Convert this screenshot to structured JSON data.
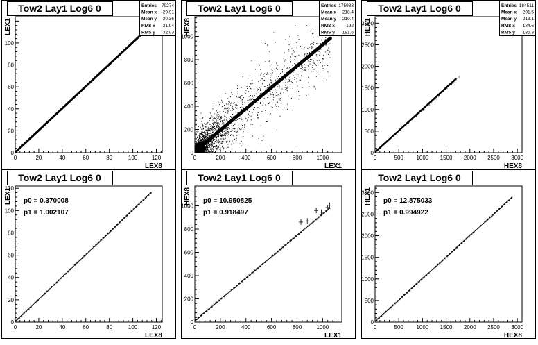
{
  "chart_data": [
    {
      "type": "scatter",
      "title": "Tow2 Lay1 Log6 0",
      "xlabel": "LEX8",
      "ylabel": "LEX1",
      "xlim": [
        0,
        125
      ],
      "ylim": [
        0,
        124
      ],
      "xticks": [
        0,
        20,
        40,
        60,
        80,
        100,
        120
      ],
      "yticks": [
        0,
        20,
        40,
        60,
        80,
        100
      ],
      "stats": [
        {
          "label": "Entries",
          "value": "79274"
        },
        {
          "label": "Mean x",
          "value": "29.91"
        },
        {
          "label": "Mean y",
          "value": "30.36"
        },
        {
          "label": "RMS x",
          "value": "31.94"
        },
        {
          "label": "RMS y",
          "value": "32.03"
        }
      ],
      "trend": {
        "slope": 1.002,
        "intercept": 0.37,
        "x_from": 0,
        "x_to": 120,
        "band": 1.2,
        "scatter_spread": 0
      }
    },
    {
      "type": "scatter",
      "title": "Tow2 Lay1 Log6 0",
      "xlabel": "LEX1",
      "ylabel": "HEX8",
      "xlim": [
        0,
        1150
      ],
      "ylim": [
        0,
        1170
      ],
      "xticks": [
        0,
        200,
        400,
        600,
        800,
        1000
      ],
      "yticks": [
        0,
        200,
        400,
        600,
        800,
        1000
      ],
      "stats": [
        {
          "label": "Entries",
          "value": "175983"
        },
        {
          "label": "Mean x",
          "value": "218.4"
        },
        {
          "label": "Mean y",
          "value": "210.4"
        },
        {
          "label": "RMS x",
          "value": "192"
        },
        {
          "label": "RMS y",
          "value": "181.6"
        }
      ],
      "trend": {
        "slope": 0.918,
        "intercept": 11,
        "x_from": 0,
        "x_to": 1060,
        "band": 18,
        "scatter_spread": 220
      }
    },
    {
      "type": "scatter",
      "title": "Tow2 Lay1 Log6 0",
      "xlabel": "HEX8",
      "ylabel": "HEX1",
      "xlim": [
        0,
        3100
      ],
      "ylim": [
        0,
        3150
      ],
      "xticks": [
        0,
        500,
        1000,
        1500,
        2000,
        2500,
        3000
      ],
      "yticks": [
        0,
        500,
        1000,
        1500,
        2000,
        2500,
        3000
      ],
      "stats": [
        {
          "label": "Entries",
          "value": "184511"
        },
        {
          "label": "Mean x",
          "value": "201.5"
        },
        {
          "label": "Mean y",
          "value": "213.1"
        },
        {
          "label": "RMS x",
          "value": "184.6"
        },
        {
          "label": "RMS y",
          "value": "185.3"
        }
      ],
      "trend": {
        "slope": 0.995,
        "intercept": 13,
        "x_from": 0,
        "x_to": 1700,
        "band": 25,
        "scatter_spread": 0
      }
    },
    {
      "type": "line",
      "title": "Tow2 Lay1 Log6 0",
      "xlabel": "LEX8",
      "ylabel": "LEX1",
      "xlim": [
        0,
        125
      ],
      "ylim": [
        0,
        122
      ],
      "xticks": [
        0,
        20,
        40,
        60,
        80,
        100,
        120
      ],
      "yticks": [
        0,
        20,
        40,
        60,
        80,
        100,
        120
      ],
      "fit": [
        {
          "name": "p0",
          "text": "p0 = 0.370008",
          "value": 0.370008
        },
        {
          "name": "p1",
          "text": "p1 = 1.002107",
          "value": 1.002107
        }
      ],
      "fit_range": [
        0,
        116
      ],
      "profile_step": 2
    },
    {
      "type": "line",
      "title": "Tow2 Lay1 Log6 0",
      "xlabel": "LEX1",
      "ylabel": "HEX8",
      "xlim": [
        0,
        1150
      ],
      "ylim": [
        0,
        1170
      ],
      "xticks": [
        0,
        200,
        400,
        600,
        800,
        1000
      ],
      "yticks": [
        0,
        200,
        400,
        600,
        800,
        1000
      ],
      "fit": [
        {
          "name": "p0",
          "text": "p0 = 10.950825",
          "value": 10.950825
        },
        {
          "name": "p1",
          "text": "p1 = 0.918497",
          "value": 0.918497
        }
      ],
      "fit_range": [
        0,
        1060
      ],
      "profile_step": 20
    },
    {
      "type": "line",
      "title": "Tow2 Lay1 Log6 0",
      "xlabel": "HEX8",
      "ylabel": "HEX1",
      "xlim": [
        0,
        3100
      ],
      "ylim": [
        0,
        3150
      ],
      "xticks": [
        0,
        500,
        1000,
        1500,
        2000,
        2500,
        3000
      ],
      "yticks": [
        0,
        500,
        1000,
        1500,
        2000,
        2500,
        3000
      ],
      "fit": [
        {
          "name": "p0",
          "text": "p0 = 12.875033",
          "value": 12.875033
        },
        {
          "name": "p1",
          "text": "p1 = 0.994922",
          "value": 0.994922
        }
      ],
      "fit_range": [
        0,
        2900
      ],
      "profile_step": 50
    }
  ]
}
